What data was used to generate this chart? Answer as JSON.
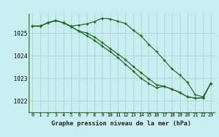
{
  "title": "Graphe pression niveau de la mer (hPa)",
  "background_color": "#c8eef0",
  "plot_background": "#c8eef0",
  "grid_color": "#b0d0d0",
  "line_color": "#1a6b1a",
  "border_color": "#336633",
  "x_labels": [
    "0",
    "1",
    "2",
    "3",
    "4",
    "5",
    "6",
    "7",
    "8",
    "9",
    "10",
    "11",
    "12",
    "13",
    "14",
    "15",
    "16",
    "17",
    "18",
    "19",
    "20",
    "21",
    "22",
    "23"
  ],
  "y_ticks": [
    1022,
    1023,
    1024,
    1025
  ],
  "ylim": [
    1021.5,
    1025.85
  ],
  "xlim": [
    -0.5,
    23.5
  ],
  "line1": [
    1025.3,
    1025.3,
    1025.45,
    1025.55,
    1025.45,
    1025.3,
    1025.35,
    1025.4,
    1025.5,
    1025.65,
    1025.62,
    1025.52,
    1025.42,
    1025.12,
    1024.88,
    1024.5,
    1024.18,
    1023.8,
    1023.42,
    1023.15,
    1022.82,
    1022.28,
    1022.18,
    1022.78
  ],
  "line2": [
    1025.3,
    1025.3,
    1025.45,
    1025.55,
    1025.45,
    1025.28,
    1025.08,
    1024.88,
    1024.68,
    1024.42,
    1024.18,
    1023.92,
    1023.62,
    1023.32,
    1023.0,
    1022.78,
    1022.58,
    1022.65,
    1022.52,
    1022.38,
    1022.18,
    1022.13,
    1022.13,
    1022.78
  ],
  "line3": [
    1025.3,
    1025.3,
    1025.45,
    1025.55,
    1025.45,
    1025.28,
    1025.08,
    1025.0,
    1024.82,
    1024.58,
    1024.32,
    1024.08,
    1023.82,
    1023.52,
    1023.25,
    1022.98,
    1022.72,
    1022.65,
    1022.52,
    1022.38,
    1022.18,
    1022.13,
    1022.13,
    1022.78
  ]
}
